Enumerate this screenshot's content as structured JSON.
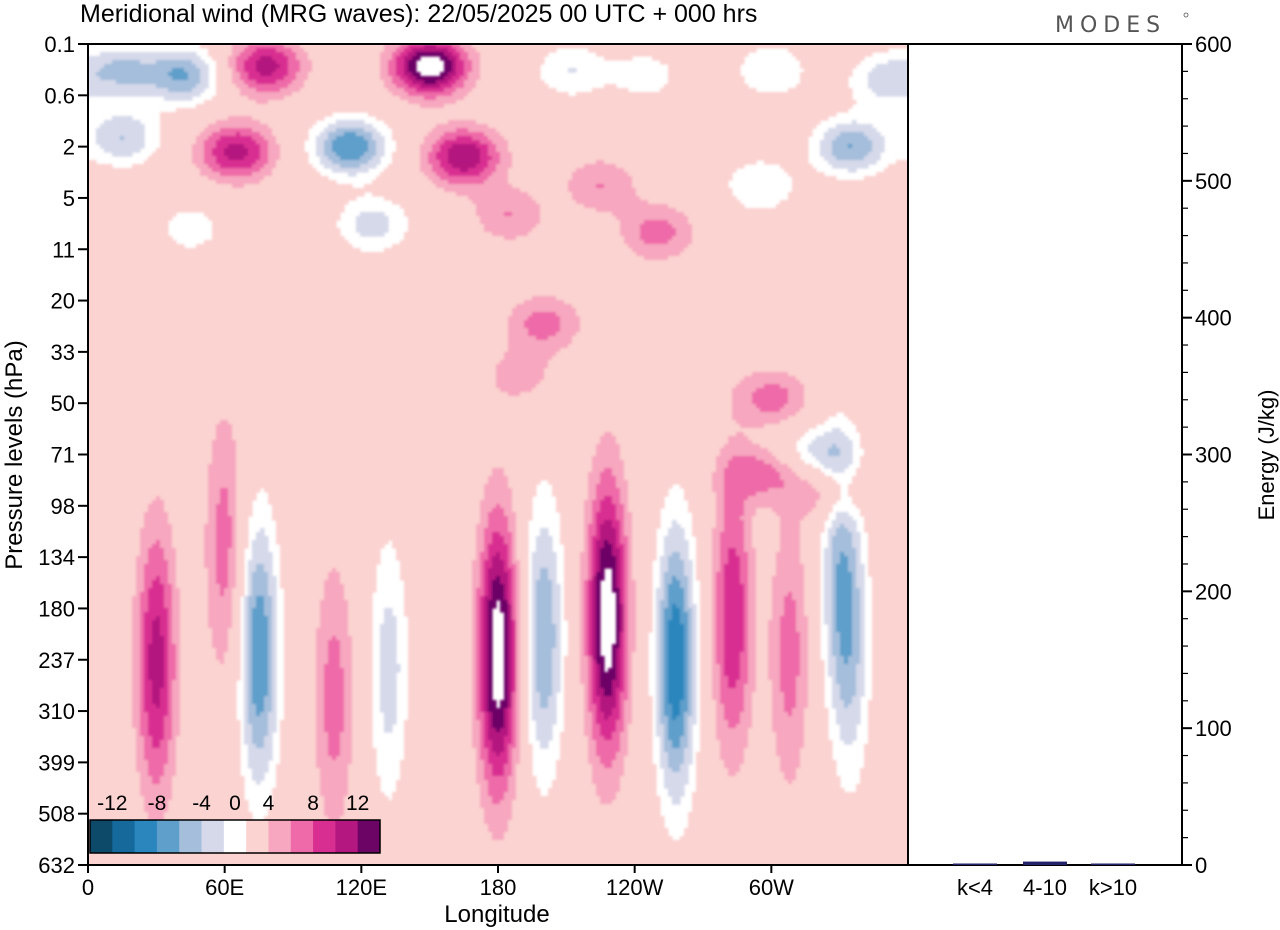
{
  "title": "Meridional wind (MRG waves):  22/05/2025  00 UTC  + 000 hrs",
  "logo": "MODES",
  "colors": {
    "neg": [
      "#0d4a6a",
      "#15699b",
      "#2a86bd",
      "#5e9fcb",
      "#a4bedc",
      "#d5d9ea"
    ],
    "zero": "#ffffff",
    "pos": [
      "#fbd3d0",
      "#f7a7bf",
      "#ee6aa8",
      "#d92e91",
      "#b4177f",
      "#6c0466"
    ],
    "energy_bar": "#23236b"
  },
  "chart_data": [
    {
      "type": "heatmap",
      "xlabel": "Longitude",
      "ylabel": "Pressure levels (hPa)",
      "x_ticks": [
        "0",
        "60E",
        "120E",
        "180",
        "120W",
        "60W"
      ],
      "y_ticks": [
        "0.1",
        "0.6",
        "2",
        "5",
        "11",
        "20",
        "33",
        "50",
        "71",
        "98",
        "134",
        "180",
        "237",
        "310",
        "399",
        "508",
        "632"
      ],
      "colorbar": {
        "labels": [
          "-12",
          "-8",
          "-4",
          "0",
          "4",
          "8",
          "12"
        ],
        "levels": [
          -14,
          -12,
          -10,
          -8,
          -6,
          -4,
          -2,
          2,
          4,
          6,
          8,
          10,
          12,
          14
        ]
      },
      "features": [
        {
          "lon": 15,
          "p": 0.25,
          "v": -6
        },
        {
          "lon": 42,
          "p": 0.3,
          "v": -8
        },
        {
          "lon": 78,
          "p": 0.22,
          "v": 9
        },
        {
          "lon": 150,
          "p": 0.22,
          "v": 14
        },
        {
          "lon": 212,
          "p": 0.25,
          "v": -4
        },
        {
          "lon": 245,
          "p": 0.3,
          "v": -3
        },
        {
          "lon": 300,
          "p": 0.25,
          "v": -4
        },
        {
          "lon": 350,
          "p": 0.35,
          "v": -5
        },
        {
          "lon": 15,
          "p": 1.6,
          "v": -6
        },
        {
          "lon": 65,
          "p": 2.2,
          "v": 9
        },
        {
          "lon": 115,
          "p": 2.0,
          "v": -10
        },
        {
          "lon": 165,
          "p": 2.4,
          "v": 10
        },
        {
          "lon": 225,
          "p": 4.0,
          "v": 4
        },
        {
          "lon": 295,
          "p": 4.0,
          "v": -4
        },
        {
          "lon": 335,
          "p": 2.0,
          "v": -8
        },
        {
          "lon": 125,
          "p": 7.5,
          "v": -5
        },
        {
          "lon": 185,
          "p": 6.5,
          "v": 4
        },
        {
          "lon": 45,
          "p": 8,
          "v": -3
        },
        {
          "lon": 250,
          "p": 8.5,
          "v": 5
        },
        {
          "lon": 200,
          "p": 25,
          "v": 5
        },
        {
          "lon": 190,
          "p": 40,
          "v": 3
        },
        {
          "lon": 300,
          "p": 48,
          "v": 5
        },
        {
          "lon": 320,
          "p": 70,
          "v": -5
        },
        {
          "lon": 295,
          "p": 80,
          "v": 5
        },
        {
          "lon": 325,
          "p": 90,
          "v": 4
        },
        {
          "lon": 60,
          "p": 125,
          "v": 5
        },
        {
          "lon": 30,
          "p": 240,
          "v": 9
        },
        {
          "lon": 75,
          "p": 230,
          "v": -10
        },
        {
          "lon": 108,
          "p": 290,
          "v": 5
        },
        {
          "lon": 132,
          "p": 250,
          "v": -5
        },
        {
          "lon": 180,
          "p": 230,
          "v": 14
        },
        {
          "lon": 200,
          "p": 210,
          "v": -8
        },
        {
          "lon": 228,
          "p": 190,
          "v": 14
        },
        {
          "lon": 258,
          "p": 240,
          "v": -12
        },
        {
          "lon": 283,
          "p": 190,
          "v": 8
        },
        {
          "lon": 308,
          "p": 230,
          "v": 5
        },
        {
          "lon": 330,
          "p": 145,
          "v": -6
        },
        {
          "lon": 335,
          "p": 230,
          "v": -5
        }
      ]
    },
    {
      "type": "bar",
      "categories": [
        "k<4",
        "4-10",
        "k>10"
      ],
      "values": [
        0.4,
        2.5,
        0.5
      ],
      "ylabel": "Energy (J/kg)",
      "ylim": [
        0,
        600
      ],
      "y_ticks": [
        "0",
        "100",
        "200",
        "300",
        "400",
        "500",
        "600"
      ]
    }
  ]
}
